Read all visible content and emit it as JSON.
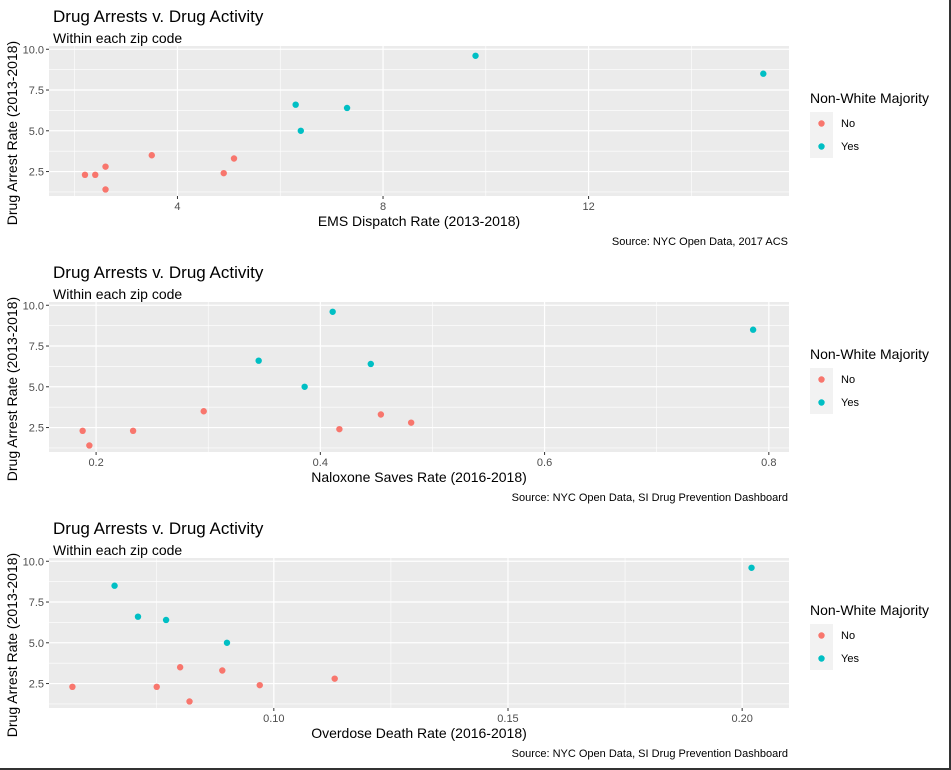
{
  "colors": {
    "no": "#F8766D",
    "yes": "#00BFC4",
    "panel": "#EBEBEB",
    "grid": "#FFFFFF"
  },
  "chart_data": [
    {
      "type": "scatter",
      "title": "Drug Arrests v. Drug Activity",
      "subtitle": "Within each zip code",
      "xlabel": "EMS Dispatch Rate (2013-2018)",
      "ylabel": "Drug Arrest Rate (2013-2018)",
      "caption": "Source: NYC Open Data, 2017 ACS",
      "xlim": [
        1.5,
        15.9
      ],
      "ylim": [
        1.0,
        10.2
      ],
      "xticks": [
        4,
        8,
        12
      ],
      "xtick_labels": [
        "4",
        "8",
        "12"
      ],
      "yticks": [
        2.5,
        5.0,
        7.5,
        10.0
      ],
      "ytick_labels": [
        "2.5",
        "5.0",
        "7.5",
        "10.0"
      ],
      "grid": true,
      "legend": {
        "title": "Non-White Majority",
        "position": "right",
        "entries": [
          "No",
          "Yes"
        ]
      },
      "series": [
        {
          "name": "No",
          "color": "#F8766D",
          "x": [
            2.2,
            2.4,
            2.6,
            2.6,
            3.5,
            4.9,
            5.1
          ],
          "y": [
            2.3,
            2.3,
            2.8,
            1.4,
            3.5,
            2.4,
            3.3
          ]
        },
        {
          "name": "Yes",
          "color": "#00BFC4",
          "x": [
            6.3,
            6.4,
            7.3,
            9.8,
            15.4
          ],
          "y": [
            6.6,
            5.0,
            6.4,
            9.6,
            8.5
          ]
        }
      ]
    },
    {
      "type": "scatter",
      "title": "Drug Arrests v. Drug Activity",
      "subtitle": "Within each zip code",
      "xlabel": "Naloxone Saves Rate (2016-2018)",
      "ylabel": "Drug Arrest Rate (2013-2018)",
      "caption": "Source: NYC Open Data, SI Drug Prevention Dashboard",
      "xlim": [
        0.158,
        0.818
      ],
      "ylim": [
        1.0,
        10.2
      ],
      "xticks": [
        0.2,
        0.4,
        0.6,
        0.8
      ],
      "xtick_labels": [
        "0.2",
        "0.4",
        "0.6",
        "0.8"
      ],
      "yticks": [
        2.5,
        5.0,
        7.5,
        10.0
      ],
      "ytick_labels": [
        "2.5",
        "5.0",
        "7.5",
        "10.0"
      ],
      "grid": true,
      "legend": {
        "title": "Non-White Majority",
        "position": "right",
        "entries": [
          "No",
          "Yes"
        ]
      },
      "series": [
        {
          "name": "No",
          "color": "#F8766D",
          "x": [
            0.188,
            0.194,
            0.233,
            0.296,
            0.417,
            0.454,
            0.481
          ],
          "y": [
            2.3,
            1.4,
            2.3,
            3.5,
            2.4,
            3.3,
            2.8
          ]
        },
        {
          "name": "Yes",
          "color": "#00BFC4",
          "x": [
            0.345,
            0.386,
            0.411,
            0.445,
            0.786
          ],
          "y": [
            6.6,
            5.0,
            9.6,
            6.4,
            8.5
          ]
        }
      ]
    },
    {
      "type": "scatter",
      "title": "Drug Arrests v. Drug Activity",
      "subtitle": "Within each zip code",
      "xlabel": "Overdose Death Rate (2016-2018)",
      "ylabel": "Drug Arrest Rate (2013-2018)",
      "caption": "Source: NYC Open Data, SI Drug Prevention Dashboard",
      "xlim": [
        0.052,
        0.21
      ],
      "ylim": [
        1.0,
        10.2
      ],
      "xticks": [
        0.1,
        0.15,
        0.2
      ],
      "xtick_labels": [
        "0.10",
        "0.15",
        "0.20"
      ],
      "yticks": [
        2.5,
        5.0,
        7.5,
        10.0
      ],
      "ytick_labels": [
        "2.5",
        "5.0",
        "7.5",
        "10.0"
      ],
      "grid": true,
      "legend": {
        "title": "Non-White Majority",
        "position": "right",
        "entries": [
          "No",
          "Yes"
        ]
      },
      "series": [
        {
          "name": "No",
          "color": "#F8766D",
          "x": [
            0.057,
            0.075,
            0.08,
            0.082,
            0.089,
            0.097,
            0.113
          ],
          "y": [
            2.3,
            2.3,
            3.5,
            1.4,
            3.3,
            2.4,
            2.8
          ]
        },
        {
          "name": "Yes",
          "color": "#00BFC4",
          "x": [
            0.066,
            0.071,
            0.077,
            0.09,
            0.202
          ],
          "y": [
            8.5,
            6.6,
            6.4,
            5.0,
            9.6
          ]
        }
      ]
    }
  ]
}
